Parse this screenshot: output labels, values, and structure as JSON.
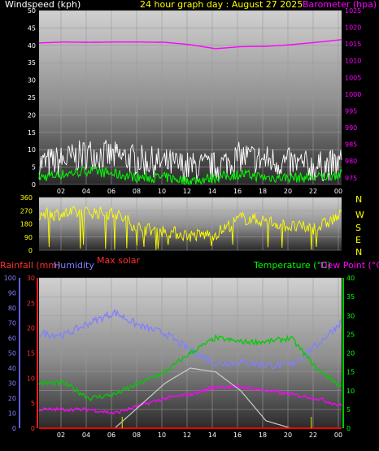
{
  "header": {
    "wind_label": "Windspeed (kph)",
    "date_label": "24 hour graph day : August 27 2025",
    "baro_label": "Barometer (hpa)"
  },
  "compass": [
    "N",
    "W",
    "S",
    "E",
    "N"
  ],
  "labels": {
    "rainfall": "Rainfall (mm)",
    "humidity": "Humidity",
    "max_solar": "Max solar",
    "temperature": "Temperature (°C)",
    "dew_point": "Dew Point (°C)"
  },
  "colors": {
    "wind_gust": "#ffffff",
    "wind_avg": "#00ff00",
    "barometer": "#ff00ff",
    "direction": "#ffff00",
    "humidity": "#8080ff",
    "temperature": "#00cc00",
    "dew_point": "#ff00ff",
    "rainfall": "#ff0000",
    "solar": "#cccccc"
  },
  "chart_data": [
    {
      "type": "line",
      "title": "24 hour graph day : August 27 2025",
      "xlabel": "",
      "ylabel": "Windspeed (kph)",
      "y2label": "Barometer (hpa)",
      "x_ticks": [
        "02",
        "04",
        "06",
        "08",
        "10",
        "12",
        "14",
        "16",
        "18",
        "20",
        "22",
        "00"
      ],
      "ylim": [
        0,
        50
      ],
      "y_ticks": [
        0,
        5,
        10,
        15,
        20,
        25,
        30,
        35,
        40,
        45,
        50
      ],
      "y2lim": [
        973,
        1025
      ],
      "y2_ticks": [
        975,
        980,
        985,
        990,
        995,
        1000,
        1005,
        1010,
        1015,
        1020,
        1025
      ],
      "x_hours": [
        0,
        2,
        4,
        6,
        8,
        10,
        12,
        14,
        16,
        18,
        20,
        22,
        24
      ],
      "series": [
        {
          "name": "Windspeed gust",
          "axis": "left",
          "values": [
            6,
            7,
            9,
            8,
            7,
            6,
            5,
            5,
            8,
            7,
            6,
            5,
            6
          ]
        },
        {
          "name": "Windspeed average",
          "axis": "left",
          "values": [
            2,
            3,
            4,
            3,
            2,
            2,
            1,
            2,
            3,
            2,
            2,
            2,
            3
          ]
        },
        {
          "name": "Barometer",
          "axis": "right",
          "values": [
            1015.3,
            1015.6,
            1015.5,
            1015.6,
            1015.6,
            1015.5,
            1014.8,
            1013.6,
            1014.2,
            1014.3,
            1014.8,
            1015.5,
            1016.3
          ]
        }
      ]
    },
    {
      "type": "scatter",
      "title": "",
      "ylabel": "",
      "x_ticks": [
        "02",
        "04",
        "06",
        "08",
        "10",
        "12",
        "14",
        "16",
        "18",
        "20",
        "22",
        "00"
      ],
      "ylim": [
        0,
        360
      ],
      "y_ticks": [
        0,
        90,
        180,
        270,
        360
      ],
      "x_hours": [
        0,
        2,
        4,
        6,
        8,
        10,
        12,
        14,
        16,
        18,
        20,
        22,
        24
      ],
      "series": [
        {
          "name": "Wind direction",
          "values": [
            240,
            250,
            260,
            250,
            150,
            130,
            100,
            110,
            220,
            200,
            160,
            150,
            240
          ]
        }
      ]
    },
    {
      "type": "line",
      "title": "",
      "x_ticks": [
        "02",
        "04",
        "06",
        "08",
        "10",
        "12",
        "14",
        "16",
        "18",
        "20",
        "22",
        "00"
      ],
      "humidity_axis": {
        "ylabel": "Humidity",
        "ylim": [
          0,
          100
        ],
        "ticks": [
          0,
          10,
          20,
          30,
          40,
          50,
          60,
          70,
          80,
          90,
          100
        ]
      },
      "rain_axis": {
        "ylabel": "Rainfall (mm)",
        "ylim": [
          0,
          30
        ],
        "ticks": [
          0,
          5,
          10,
          15,
          20,
          25,
          30
        ]
      },
      "temp_axis": {
        "ylabel": "Temperature (°C)",
        "ylim": [
          0,
          40
        ],
        "ticks": [
          0,
          5,
          10,
          15,
          20,
          25,
          30,
          35,
          40
        ]
      },
      "x_hours": [
        0,
        2,
        4,
        6,
        8,
        10,
        12,
        14,
        16,
        18,
        20,
        22,
        24
      ],
      "series": [
        {
          "name": "Humidity",
          "axis": "humidity",
          "values": [
            63,
            62,
            70,
            77,
            68,
            63,
            52,
            43,
            44,
            42,
            42,
            55,
            71
          ]
        },
        {
          "name": "Temperature (°C)",
          "axis": "temp",
          "values": [
            12,
            12,
            8,
            9,
            12,
            15,
            20,
            24,
            23,
            23,
            24,
            16,
            11
          ]
        },
        {
          "name": "Dew Point (°C)",
          "axis": "temp",
          "values": [
            5,
            5,
            5,
            4,
            6,
            8,
            9,
            11,
            11,
            10,
            9,
            8,
            6
          ]
        },
        {
          "name": "Max solar",
          "axis": "temp",
          "values": [
            0,
            0,
            0,
            0,
            6,
            12,
            16,
            15,
            10,
            2,
            0,
            0,
            0
          ]
        },
        {
          "name": "Rainfall (mm)",
          "axis": "rain",
          "values": [
            0,
            0,
            0,
            0,
            0,
            0,
            0,
            0,
            0,
            0,
            0,
            0,
            0
          ]
        }
      ]
    }
  ]
}
